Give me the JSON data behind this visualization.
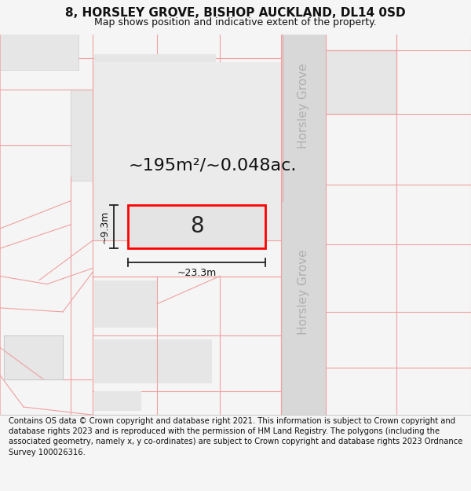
{
  "title": "8, HORSLEY GROVE, BISHOP AUCKLAND, DL14 0SD",
  "subtitle": "Map shows position and indicative extent of the property.",
  "footer": "Contains OS data © Crown copyright and database right 2021. This information is subject to Crown copyright and database rights 2023 and is reproduced with the permission of HM Land Registry. The polygons (including the associated geometry, namely x, y co-ordinates) are subject to Crown copyright and database rights 2023 Ordnance Survey 100026316.",
  "bg_color": "#f5f5f5",
  "map_bg": "#ffffff",
  "road_color": "#d8d8d8",
  "building_fill": "#e6e6e6",
  "parcel_line_color": "#f0a0a0",
  "plot_fill": "#e0e0e0",
  "plot_stroke": "#ff0000",
  "road_label": "Horsley Grove",
  "plot_number": "8",
  "area_label": "~195m²/~0.048ac.",
  "width_label": "~23.3m",
  "height_label": "~9.3m",
  "title_fontsize": 11,
  "subtitle_fontsize": 9,
  "footer_fontsize": 7.2,
  "road_label_fontsize": 11,
  "plot_number_fontsize": 20,
  "area_label_fontsize": 16,
  "dim_label_fontsize": 9
}
